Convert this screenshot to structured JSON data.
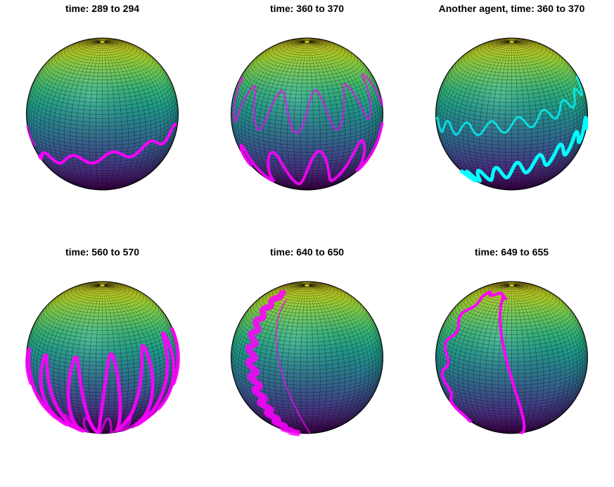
{
  "panels": [
    {
      "title": "time: 289 to 294",
      "trail_color": "#ff00ff",
      "style": "band"
    },
    {
      "title": "time: 360 to 370",
      "trail_color": "#ff00ff",
      "style": "zigzag"
    },
    {
      "title": "Another agent, time: 360 to 370",
      "trail_color": "#00ffff",
      "style": "cyan"
    },
    {
      "title": "time: 560 to 570",
      "trail_color": "#ff00ff",
      "style": "dense"
    },
    {
      "title": "time: 640 to 650",
      "trail_color": "#ff00ff",
      "style": "side"
    },
    {
      "title": "time: 649 to 655",
      "trail_color": "#ff00ff",
      "style": "loop"
    }
  ],
  "sphere": {
    "colormap": [
      "#fde725",
      "#b5de2b",
      "#6ece58",
      "#35b779",
      "#1f9e89",
      "#26828e",
      "#31688e",
      "#3e4989",
      "#482878",
      "#440154"
    ],
    "mesh_color": "#000000"
  }
}
